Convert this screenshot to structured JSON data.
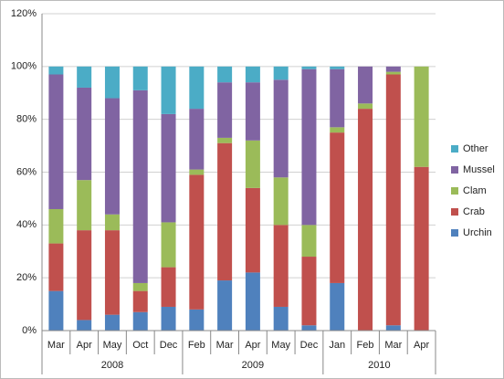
{
  "chart_data": {
    "type": "stacked-bar",
    "groups": [
      {
        "name": "2008",
        "categories": [
          "Mar",
          "Apr",
          "May",
          "Oct",
          "Dec"
        ]
      },
      {
        "name": "2009",
        "categories": [
          "Feb",
          "Mar",
          "Apr",
          "May",
          "Dec"
        ]
      },
      {
        "name": "2010",
        "categories": [
          "Jan",
          "Feb",
          "Mar",
          "Apr"
        ]
      }
    ],
    "series": [
      {
        "name": "Urchin",
        "color": "#4f81bd",
        "values": [
          15,
          4,
          6,
          7,
          9,
          8,
          19,
          22,
          9,
          2,
          18,
          0,
          2,
          0
        ]
      },
      {
        "name": "Crab",
        "color": "#c0504d",
        "values": [
          18,
          34,
          32,
          8,
          15,
          51,
          52,
          32,
          31,
          26,
          57,
          84,
          95,
          62
        ]
      },
      {
        "name": "Clam",
        "color": "#9bbb59",
        "values": [
          13,
          19,
          6,
          3,
          17,
          2,
          2,
          18,
          18,
          12,
          2,
          2,
          1,
          38
        ]
      },
      {
        "name": "Mussel",
        "color": "#8064a2",
        "values": [
          51,
          35,
          44,
          73,
          41,
          23,
          21,
          22,
          37,
          59,
          22,
          14,
          2,
          0
        ]
      },
      {
        "name": "Other",
        "color": "#4bacc6",
        "values": [
          3,
          8,
          12,
          9,
          18,
          16,
          6,
          6,
          5,
          1,
          1,
          0,
          0,
          0
        ]
      }
    ],
    "ylim": [
      0,
      120
    ],
    "yticks": [
      {
        "value": 0,
        "label": "0%"
      },
      {
        "value": 20,
        "label": "20%"
      },
      {
        "value": 40,
        "label": "40%"
      },
      {
        "value": 60,
        "label": "60%"
      },
      {
        "value": 80,
        "label": "80%"
      },
      {
        "value": 100,
        "label": "100%"
      },
      {
        "value": 120,
        "label": "120%"
      }
    ],
    "grid": true
  }
}
